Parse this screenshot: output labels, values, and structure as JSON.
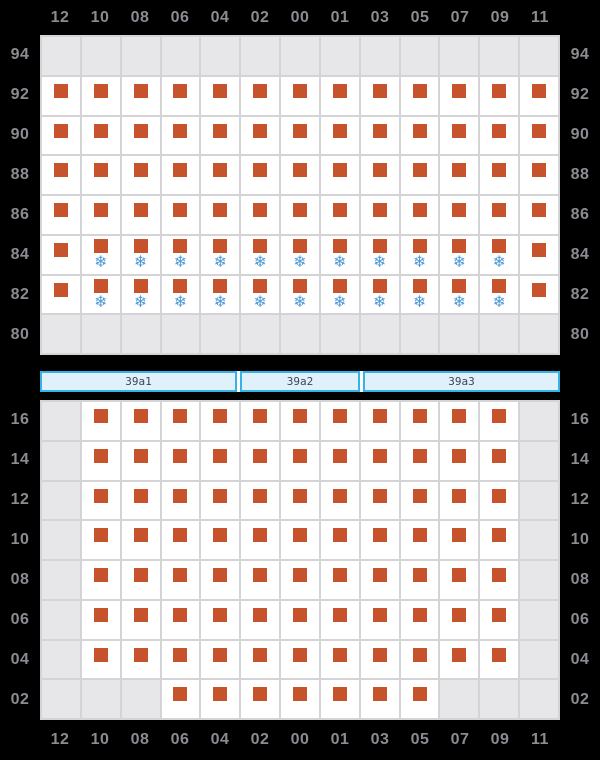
{
  "palette": {
    "background": "#000000",
    "cell_available": "#ffffff",
    "cell_blocked": "#e7e7e9",
    "grid_line": "#d4d4d6",
    "container_marker": "#c6532b",
    "reefer_icon": "#4e9ad5",
    "axis_label": "#8a8c92",
    "bay_bar_fill": "#e1f1fb",
    "bay_bar_border": "#35b2e8",
    "bay_bar_text": "#3c4654"
  },
  "reefer_icon_glyph": "❄",
  "cell_state_legend": {
    "b": "blocked-slot",
    "o": "container-slot",
    "r": "container-slot-with-reefer"
  },
  "columns": [
    "12",
    "10",
    "08",
    "06",
    "04",
    "02",
    "00",
    "01",
    "03",
    "05",
    "07",
    "09",
    "11"
  ],
  "above_deck": {
    "row_labels": [
      "94",
      "92",
      "90",
      "88",
      "86",
      "84",
      "82",
      "80"
    ],
    "rows": [
      [
        "b",
        "b",
        "b",
        "b",
        "b",
        "b",
        "b",
        "b",
        "b",
        "b",
        "b",
        "b",
        "b"
      ],
      [
        "o",
        "o",
        "o",
        "o",
        "o",
        "o",
        "o",
        "o",
        "o",
        "o",
        "o",
        "o",
        "o"
      ],
      [
        "o",
        "o",
        "o",
        "o",
        "o",
        "o",
        "o",
        "o",
        "o",
        "o",
        "o",
        "o",
        "o"
      ],
      [
        "o",
        "o",
        "o",
        "o",
        "o",
        "o",
        "o",
        "o",
        "o",
        "o",
        "o",
        "o",
        "o"
      ],
      [
        "o",
        "o",
        "o",
        "o",
        "o",
        "o",
        "o",
        "o",
        "o",
        "o",
        "o",
        "o",
        "o"
      ],
      [
        "o",
        "r",
        "r",
        "r",
        "r",
        "r",
        "r",
        "r",
        "r",
        "r",
        "r",
        "r",
        "o"
      ],
      [
        "o",
        "r",
        "r",
        "r",
        "r",
        "r",
        "r",
        "r",
        "r",
        "r",
        "r",
        "r",
        "o"
      ],
      [
        "b",
        "b",
        "b",
        "b",
        "b",
        "b",
        "b",
        "b",
        "b",
        "b",
        "b",
        "b",
        "b"
      ]
    ]
  },
  "bay_bar": {
    "segments": [
      {
        "label": "39a1",
        "span_columns": 5
      },
      {
        "label": "39a2",
        "span_columns": 3
      },
      {
        "label": "39a3",
        "span_columns": 5
      }
    ]
  },
  "below_deck": {
    "row_labels": [
      "16",
      "14",
      "12",
      "10",
      "08",
      "06",
      "04",
      "02"
    ],
    "rows": [
      [
        "b",
        "o",
        "o",
        "o",
        "o",
        "o",
        "o",
        "o",
        "o",
        "o",
        "o",
        "o",
        "b"
      ],
      [
        "b",
        "o",
        "o",
        "o",
        "o",
        "o",
        "o",
        "o",
        "o",
        "o",
        "o",
        "o",
        "b"
      ],
      [
        "b",
        "o",
        "o",
        "o",
        "o",
        "o",
        "o",
        "o",
        "o",
        "o",
        "o",
        "o",
        "b"
      ],
      [
        "b",
        "o",
        "o",
        "o",
        "o",
        "o",
        "o",
        "o",
        "o",
        "o",
        "o",
        "o",
        "b"
      ],
      [
        "b",
        "o",
        "o",
        "o",
        "o",
        "o",
        "o",
        "o",
        "o",
        "o",
        "o",
        "o",
        "b"
      ],
      [
        "b",
        "o",
        "o",
        "o",
        "o",
        "o",
        "o",
        "o",
        "o",
        "o",
        "o",
        "o",
        "b"
      ],
      [
        "b",
        "o",
        "o",
        "o",
        "o",
        "o",
        "o",
        "o",
        "o",
        "o",
        "o",
        "o",
        "b"
      ],
      [
        "b",
        "b",
        "b",
        "o",
        "o",
        "o",
        "o",
        "o",
        "o",
        "o",
        "b",
        "b",
        "b"
      ]
    ]
  }
}
